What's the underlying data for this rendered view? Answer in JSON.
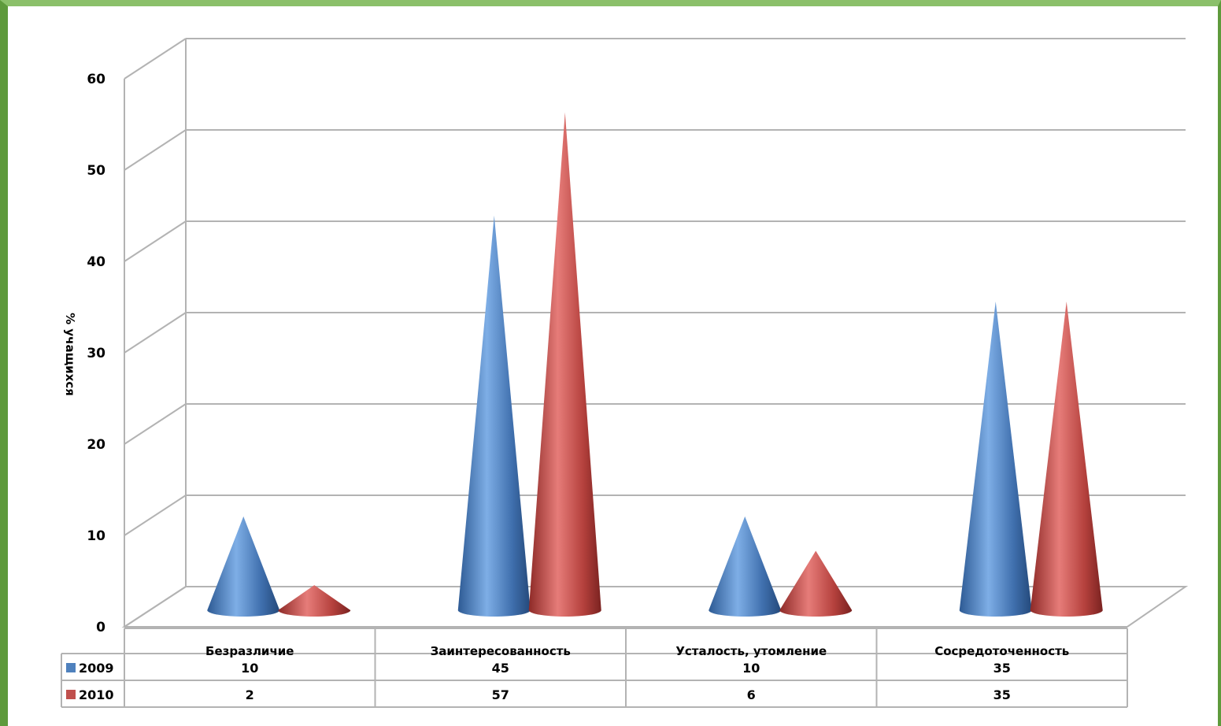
{
  "chart_data": {
    "type": "bar",
    "style": "3d-cone",
    "categories": [
      "Безразличие",
      "Заинтересованность",
      "Усталость, утомление",
      "Сосредоточенность"
    ],
    "series": [
      {
        "name": "2009",
        "values": [
          10,
          45,
          10,
          35
        ],
        "color": "#4f81bd"
      },
      {
        "name": "2010",
        "values": [
          2,
          57,
          6,
          35
        ],
        "color": "#c0504d"
      }
    ],
    "ylabel": "% учащихся",
    "ylim": [
      0,
      60
    ],
    "yticks": [
      0,
      10,
      20,
      30,
      40,
      50,
      60
    ],
    "grid": true,
    "legend": "data-table"
  },
  "colors": {
    "frame_dark": "#5e9a3c",
    "frame_light": "#8bc06a",
    "grid": "#b3b3b3"
  }
}
